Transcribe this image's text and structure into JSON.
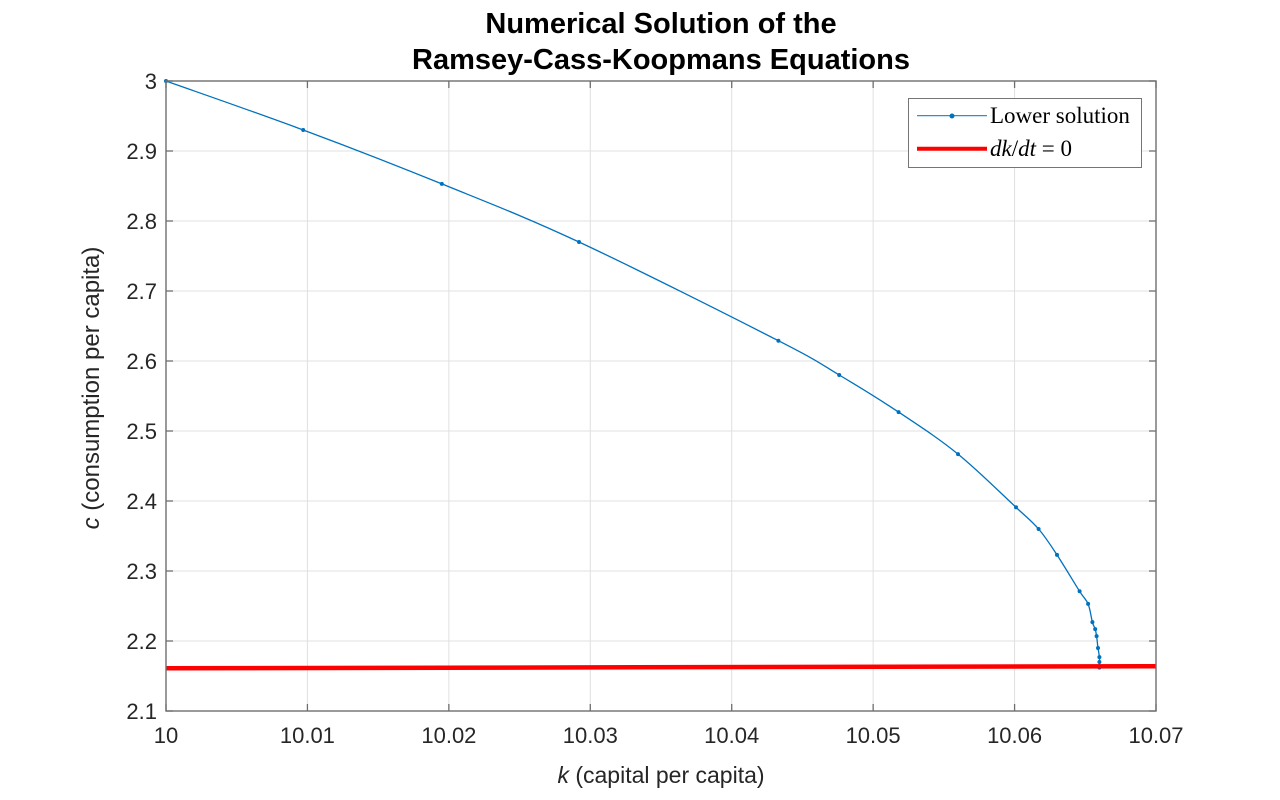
{
  "figure": {
    "title_line1": "Numerical Solution of the",
    "title_line2": "Ramsey-Cass-Koopmans Equations"
  },
  "axes": {
    "x": {
      "label_var": "k",
      "label_rest": " (capital per capita)",
      "min": 10,
      "max": 10.07,
      "ticks": [
        10,
        10.01,
        10.02,
        10.03,
        10.04,
        10.05,
        10.06,
        10.07
      ],
      "tick_labels": [
        "10",
        "10.01",
        "10.02",
        "10.03",
        "10.04",
        "10.05",
        "10.06",
        "10.07"
      ]
    },
    "y": {
      "label_var": "c",
      "label_rest": " (consumption per capita)",
      "min": 2.1,
      "max": 3,
      "ticks": [
        2.1,
        2.2,
        2.3,
        2.4,
        2.5,
        2.6,
        2.7,
        2.8,
        2.9,
        3
      ],
      "tick_labels": [
        "2.1",
        "2.2",
        "2.3",
        "2.4",
        "2.5",
        "2.6",
        "2.7",
        "2.8",
        "2.9",
        "3"
      ]
    }
  },
  "legend": {
    "items": [
      {
        "label": "Lower solution",
        "label_runs": [
          [
            "r",
            "Lower solution"
          ]
        ],
        "swatch": "line-with-marker",
        "color": "#0072BD"
      },
      {
        "label": "dk/dt = 0",
        "label_runs": [
          [
            "i",
            "dk"
          ],
          [
            "r",
            "/"
          ],
          [
            "i",
            "dt"
          ],
          [
            "r",
            " = 0"
          ]
        ],
        "swatch": "thick-line",
        "color": "#FF0000"
      }
    ]
  },
  "colors": {
    "blue": "#0072BD",
    "red": "#FF0000",
    "grid": "#E0E0E0",
    "axis": "#6E6E6E",
    "tick_text": "#262626"
  },
  "chart_data": {
    "type": "line",
    "title": "Numerical Solution of the Ramsey-Cass-Koopmans Equations",
    "xlabel": "k (capital per capita)",
    "ylabel": "c (consumption per capita)",
    "xlim": [
      10,
      10.07
    ],
    "ylim": [
      2.1,
      3
    ],
    "grid": true,
    "legend_position": "top-right",
    "series": [
      {
        "name": "Lower solution",
        "color": "#0072BD",
        "style": "line+markers",
        "points": [
          [
            10.0,
            3.0
          ],
          [
            10.0097,
            2.93
          ],
          [
            10.0195,
            2.853
          ],
          [
            10.0292,
            2.77
          ],
          [
            10.0433,
            2.629
          ],
          [
            10.0476,
            2.58
          ],
          [
            10.0518,
            2.527
          ],
          [
            10.056,
            2.467
          ],
          [
            10.0601,
            2.391
          ],
          [
            10.0617,
            2.36
          ],
          [
            10.063,
            2.323
          ],
          [
            10.0646,
            2.271
          ],
          [
            10.0652,
            2.253
          ],
          [
            10.0655,
            2.227
          ],
          [
            10.0657,
            2.217
          ],
          [
            10.0658,
            2.207
          ],
          [
            10.0659,
            2.19
          ],
          [
            10.066,
            2.177
          ],
          [
            10.066,
            2.17
          ],
          [
            10.066,
            2.162
          ]
        ]
      },
      {
        "name": "dk/dt = 0",
        "color": "#FF0000",
        "style": "thick-line",
        "points": [
          [
            10.0,
            2.161
          ],
          [
            10.07,
            2.164
          ]
        ]
      }
    ]
  }
}
